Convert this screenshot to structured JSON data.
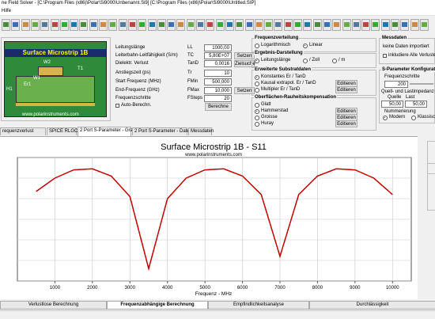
{
  "window": {
    "title": "ne Field Solver - [C:\\Program Files (x86)\\Polar\\Si9000\\Unbenannt.Si9]  [C:\\Program Files (x86)\\Polar\\Si9000\\Untitled.SIP]",
    "menu": [
      "Hilfe"
    ]
  },
  "structure": {
    "title": "Surface Microstrip 1B",
    "labels": [
      "W2",
      "W1",
      "T1",
      "H1",
      "Er1"
    ],
    "url": "www.polarinstruments.com"
  },
  "parameters": [
    {
      "label": "Leitungslänge",
      "symbol": "LL",
      "value": "1000,00"
    },
    {
      "label": "Leiterbahn-Leitfähigkeit (S/m)",
      "symbol": "TC",
      "value": "5,80E+07"
    },
    {
      "label": "Dielektr. Verlust",
      "symbol": "TanD",
      "value": "0,0016"
    },
    {
      "label": "Anstiegszeit (ps)",
      "symbol": "Tr",
      "value": "10"
    },
    {
      "label": "Start Frequenz (MHz)",
      "symbol": "FMin",
      "value": "500,000"
    },
    {
      "label": "End-Frequenz (GHz)",
      "symbol": "FMax",
      "value": "10,000"
    },
    {
      "label": "Frequenzschritte",
      "symbol": "FSteps",
      "value": "20"
    }
  ],
  "buttons": {
    "set": "Setzen",
    "goal": "Zielsuche",
    "calc": "Berechne"
  },
  "auto_calc": "Auto-Berechn.",
  "frequency_distribution": {
    "title": "Frequenzverteilung",
    "options": [
      "Logarithmisch",
      "Linear"
    ],
    "selected": 1
  },
  "result_display": {
    "title": "Ergebnis-Darstellung",
    "options": [
      "Leitungslänge",
      "/ Zoll",
      "/ m"
    ],
    "selected": 0
  },
  "substrate": {
    "title": "Erweiterte Substratdaten",
    "options": [
      "Konstantes Er / TanD",
      "Kausal extrapol. Er / TanD",
      "Multipler Er / TanD"
    ],
    "selected": 0,
    "edit": "Editieren"
  },
  "roughness": {
    "title": "Oberflächen-Rauheitskompensation",
    "options": [
      "Glatt",
      "Hammerstad",
      "Groisse",
      "Huray"
    ],
    "selected": 1,
    "edit": "Editieren"
  },
  "measured": {
    "title": "Messdaten",
    "status": "keine Daten importiert",
    "include": "inkludiere Alle Verluste"
  },
  "sparam": {
    "title": "S-Parameter Konfiguration",
    "steps_label": "Frequenzschritte",
    "steps": "200",
    "impedance_label": "Quell- und Lastimpedanz (Ohm)",
    "source_label": "Quelle",
    "load_label": "Last",
    "source": "50,00",
    "load": "50,00",
    "numbering_label": "Nummerierung",
    "numbering": [
      "Modern",
      "Klassisch"
    ],
    "selected": 0
  },
  "tabs": [
    "requenzverlust",
    "SPICE RLGC",
    "2 Port S-Parameter - Grafik",
    "2 Port S-Parameter - Daten",
    "Messdaten"
  ],
  "active_tab": 2,
  "chart_data": {
    "type": "line",
    "title": "Surface Microstrip 1B - S11",
    "subtitle": "www.polarinstruments.com",
    "x_label": "Frequenz - MHz",
    "x": [
      500,
      1000,
      1500,
      2000,
      2500,
      3000,
      3500,
      4000,
      4500,
      5000,
      5500,
      6000,
      6500,
      7000,
      7500,
      8000,
      8500,
      9000,
      9500,
      10000
    ],
    "values": [
      4.35,
      5.0,
      5.4,
      5.45,
      5.1,
      4.1,
      0.6,
      4.0,
      5.0,
      5.4,
      5.45,
      5.1,
      4.2,
      1.2,
      4.2,
      5.1,
      5.45,
      5.4,
      5.0,
      4.2
    ],
    "color": "#c00000",
    "xlim": [
      0,
      10500
    ],
    "xticks": [
      1000,
      2000,
      3000,
      4000,
      5000,
      6000,
      7000,
      8000,
      9000,
      10000
    ],
    "ylim": [
      0,
      6
    ],
    "ygrid": [
      0,
      1,
      2,
      3,
      4,
      5,
      6
    ],
    "grid": true
  },
  "bottom_tabs": [
    "Verlustlose Berechnung",
    "Frequenzabhängige Berechnung",
    "Empfindlichkeitsanalyse",
    "Durchlässigkeit"
  ],
  "active_bottom_tab": 1
}
